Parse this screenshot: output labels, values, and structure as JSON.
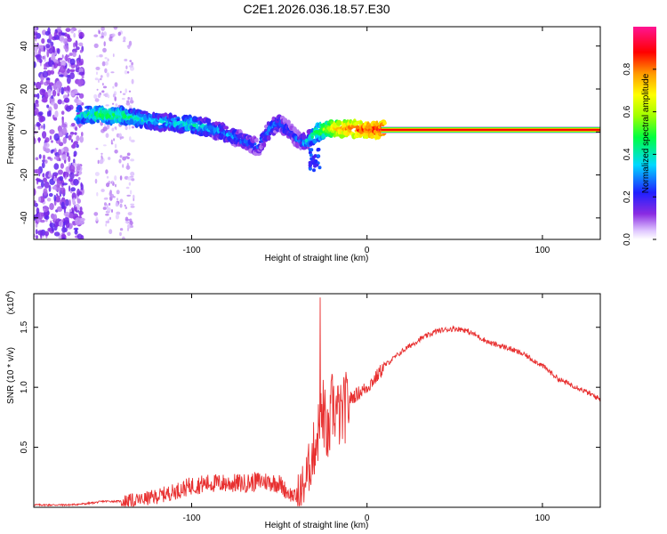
{
  "page": {
    "title": "C2E1.2026.036.18.57.E30"
  },
  "chart_data": [
    {
      "type": "heatmap",
      "title": "C2E1.2026.036.18.57.E30",
      "xlabel": "Height of straight line (km)",
      "ylabel": "Frequency (Hz)",
      "xlim": [
        -190,
        133
      ],
      "ylim": [
        -50,
        49
      ],
      "xticks": [
        -100,
        0,
        100
      ],
      "xtick_labels": [
        "-100",
        "0",
        "100"
      ],
      "yticks": [
        -40,
        -20,
        0,
        20,
        40
      ],
      "ytick_labels": [
        "-40",
        "-20",
        "0",
        "20",
        "40"
      ],
      "colorbar": {
        "label": "Normalized spectral amplitude",
        "range": [
          0,
          1
        ],
        "ticks": [
          0.0,
          0.2,
          0.4,
          0.6,
          0.8
        ],
        "tick_labels": [
          "0.0",
          "0.2",
          "0.4",
          "0.6",
          "0.8"
        ],
        "colormap": "rainbow (violet-blue-cyan-green-yellow-red-magenta)"
      },
      "ridge": {
        "description": "dominant spectral ridge frequency vs height",
        "x": [
          -162,
          -150,
          -140,
          -130,
          -120,
          -110,
          -100,
          -90,
          -80,
          -70,
          -62,
          -55,
          -50,
          -45,
          -40,
          -35,
          -30,
          -25,
          -20,
          -10,
          0,
          10,
          20,
          40,
          60,
          80,
          95,
          133
        ],
        "y": [
          8,
          8,
          7.5,
          6,
          5,
          4,
          3.5,
          2,
          -1,
          -4,
          -7,
          2,
          4,
          1,
          -3,
          -5,
          -1,
          1,
          1.5,
          1.5,
          1,
          1,
          1,
          1,
          1,
          1,
          1,
          1
        ],
        "amplitude": [
          0.4,
          0.5,
          0.45,
          0.4,
          0.35,
          0.35,
          0.4,
          0.35,
          0.3,
          0.3,
          0.25,
          0.3,
          0.3,
          0.25,
          0.25,
          0.3,
          0.45,
          0.55,
          0.7,
          0.8,
          0.85,
          0.9,
          0.92,
          0.92,
          0.92,
          0.92,
          0.92,
          0.92
        ]
      }
    },
    {
      "type": "line",
      "title": "",
      "xlabel": "Height of straight line (km)",
      "ylabel": "SNR (10 * v/v)",
      "y_multiplier_label": "(x10",
      "y_multiplier_exponent": "4",
      "xlim": [
        -190,
        133
      ],
      "ylim": [
        0,
        1.78
      ],
      "xticks": [
        -100,
        0,
        100
      ],
      "xtick_labels": [
        "-100",
        "0",
        "100"
      ],
      "yticks": [
        0.5,
        1.0,
        1.5
      ],
      "ytick_labels": [
        "0.5",
        "1.0",
        "1.5"
      ],
      "series": [
        {
          "name": "SNR",
          "color": "#e83030",
          "x": [
            -190,
            -170,
            -160,
            -150,
            -140,
            -130,
            -120,
            -110,
            -100,
            -90,
            -80,
            -70,
            -60,
            -50,
            -45,
            -40,
            -35,
            -30,
            -25,
            -22,
            -20,
            -15,
            -10,
            -5,
            0,
            5,
            10,
            20,
            30,
            40,
            50,
            55,
            60,
            70,
            80,
            90,
            100,
            110,
            120,
            133
          ],
          "y": [
            0.02,
            0.02,
            0.03,
            0.05,
            0.05,
            0.06,
            0.09,
            0.13,
            0.18,
            0.2,
            0.2,
            0.2,
            0.22,
            0.2,
            0.12,
            0.08,
            0.22,
            0.5,
            0.8,
            0.55,
            0.85,
            0.75,
            0.9,
            0.95,
            1.0,
            1.08,
            1.18,
            1.3,
            1.4,
            1.47,
            1.49,
            1.48,
            1.45,
            1.37,
            1.33,
            1.27,
            1.18,
            1.06,
            1.0,
            0.9
          ]
        }
      ]
    }
  ]
}
